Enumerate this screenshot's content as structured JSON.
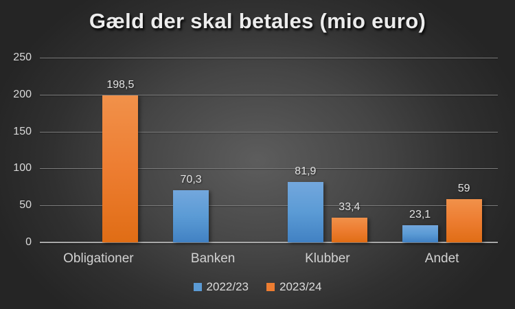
{
  "title": "Gæld der skal betales (mio euro)",
  "legend": [
    {
      "label": "2022/23",
      "color": "#5b9bd5"
    },
    {
      "label": "2023/24",
      "color": "#ed7d31"
    }
  ],
  "chart_data": {
    "type": "bar",
    "title": "Gæld der skal betales (mio euro)",
    "categories": [
      "Obligationer",
      "Banken",
      "Klubber",
      "Andet"
    ],
    "series": [
      {
        "name": "2022/23",
        "color": "#5b9bd5",
        "values": [
          null,
          70.3,
          81.9,
          23.1
        ],
        "labels": [
          "",
          "70,3",
          "81,9",
          "23,1"
        ]
      },
      {
        "name": "2023/24",
        "color": "#ed7d31",
        "values": [
          198.5,
          null,
          33.4,
          59
        ],
        "labels": [
          "198,5",
          "",
          "33,4",
          "59"
        ]
      }
    ],
    "xlabel": "",
    "ylabel": "",
    "ylim": [
      0,
      250
    ],
    "yticks": [
      0,
      50,
      100,
      150,
      200,
      250
    ],
    "grid": true,
    "legend_position": "bottom",
    "background": "dark-radial-gray",
    "gridline_color": "#7d7d7d",
    "text_color": "#d9d9d9"
  }
}
